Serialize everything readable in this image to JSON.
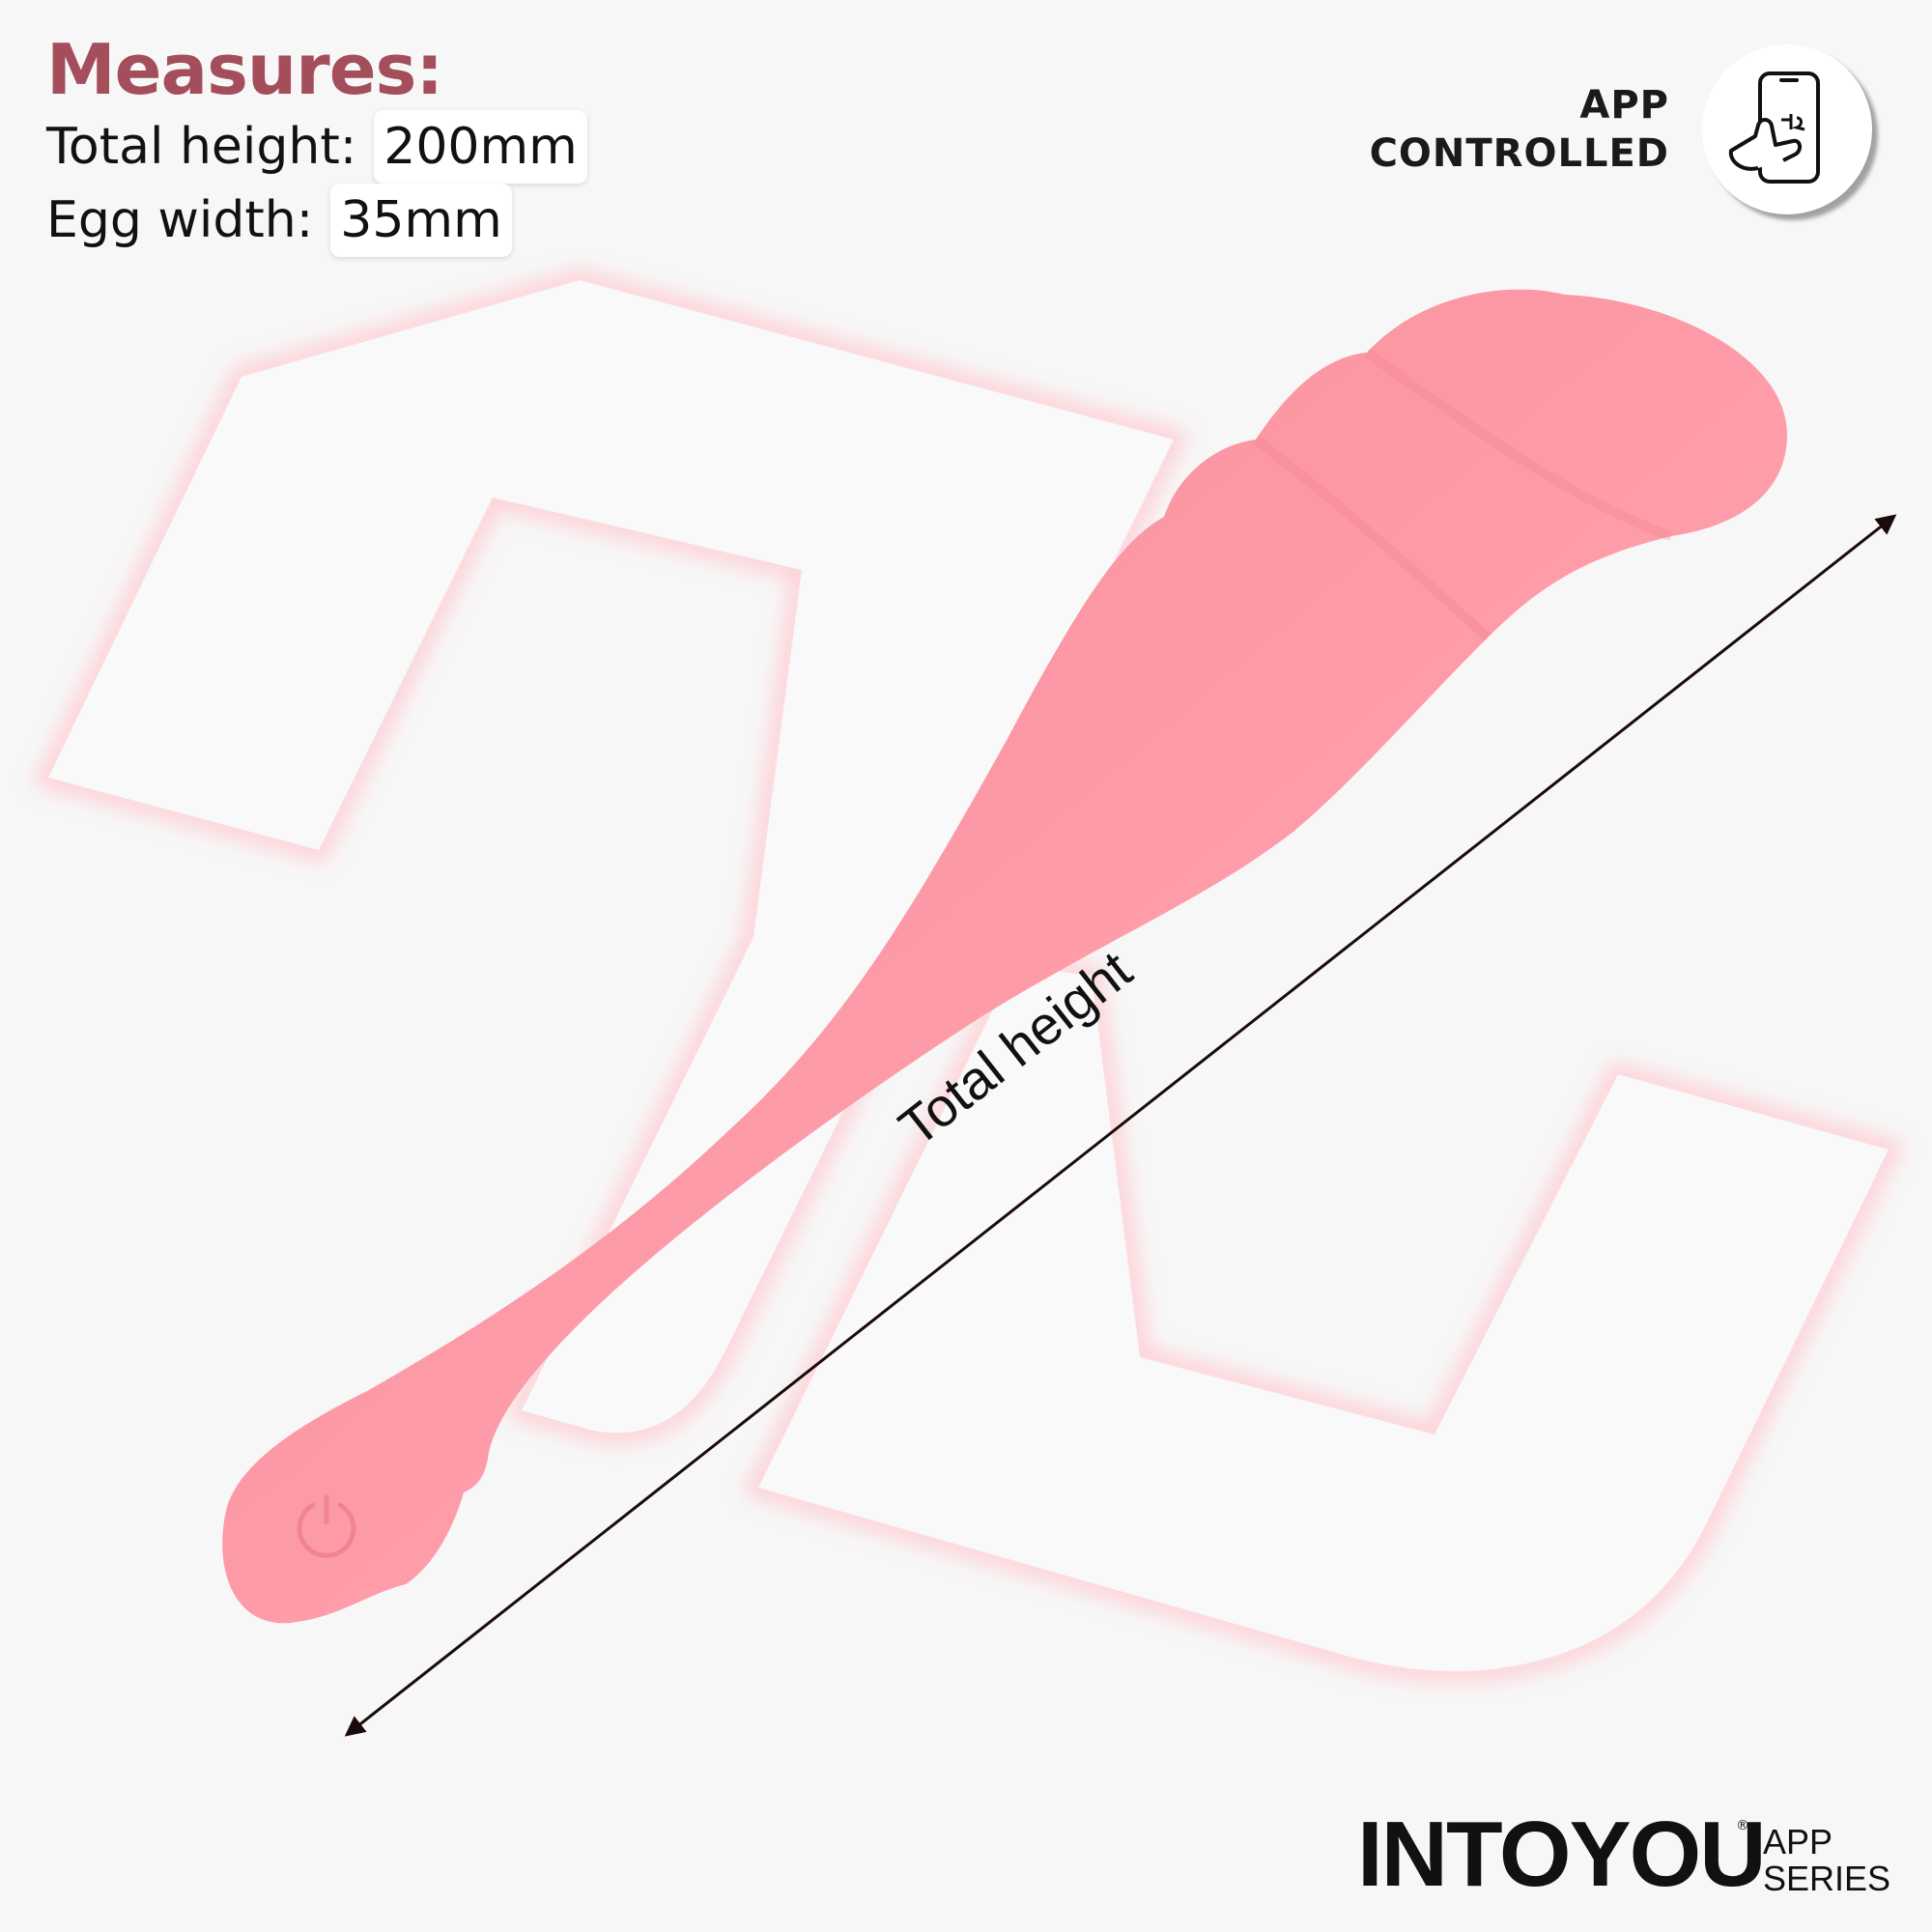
{
  "measures": {
    "title": "Measures:",
    "rows": [
      {
        "label": "Total height:",
        "value": "200mm"
      },
      {
        "label": "Egg width:",
        "value": "35mm"
      }
    ]
  },
  "badge": {
    "line1": "APP",
    "line2": "CONTROLLED",
    "icon": "phone-touch-icon"
  },
  "dimension": {
    "label": "Total height"
  },
  "brand": {
    "name": "INTOYOU",
    "registered": "®",
    "line1": "APP",
    "line2": "SERIES"
  },
  "colors": {
    "accent": "#a44e5c",
    "product": "#f79aa6",
    "background": "#f7f7f7",
    "text": "#111111"
  },
  "product": {
    "icon": "power-icon"
  }
}
